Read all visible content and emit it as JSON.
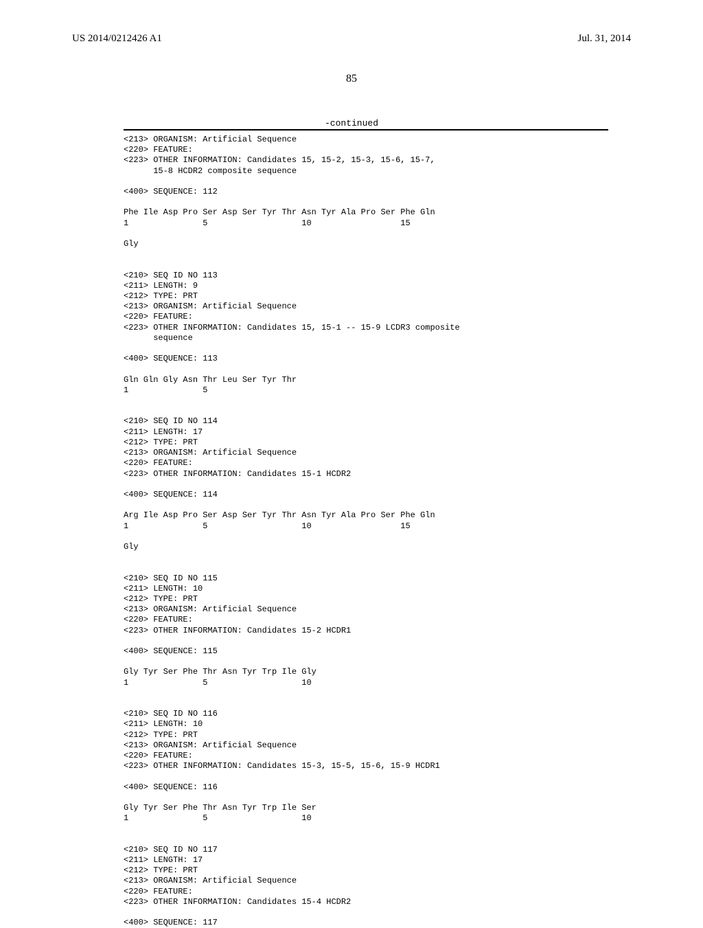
{
  "header": {
    "left": "US 2014/0212426 A1",
    "right": "Jul. 31, 2014",
    "page_number": "85",
    "continued": "-continued"
  },
  "sequence_text": "<213> ORGANISM: Artificial Sequence\n<220> FEATURE:\n<223> OTHER INFORMATION: Candidates 15, 15-2, 15-3, 15-6, 15-7,\n      15-8 HCDR2 composite sequence\n\n<400> SEQUENCE: 112\n\nPhe Ile Asp Pro Ser Asp Ser Tyr Thr Asn Tyr Ala Pro Ser Phe Gln\n1               5                   10                  15\n\nGly\n\n\n<210> SEQ ID NO 113\n<211> LENGTH: 9\n<212> TYPE: PRT\n<213> ORGANISM: Artificial Sequence\n<220> FEATURE:\n<223> OTHER INFORMATION: Candidates 15, 15-1 -- 15-9 LCDR3 composite\n      sequence\n\n<400> SEQUENCE: 113\n\nGln Gln Gly Asn Thr Leu Ser Tyr Thr\n1               5\n\n\n<210> SEQ ID NO 114\n<211> LENGTH: 17\n<212> TYPE: PRT\n<213> ORGANISM: Artificial Sequence\n<220> FEATURE:\n<223> OTHER INFORMATION: Candidates 15-1 HCDR2\n\n<400> SEQUENCE: 114\n\nArg Ile Asp Pro Ser Asp Ser Tyr Thr Asn Tyr Ala Pro Ser Phe Gln\n1               5                   10                  15\n\nGly\n\n\n<210> SEQ ID NO 115\n<211> LENGTH: 10\n<212> TYPE: PRT\n<213> ORGANISM: Artificial Sequence\n<220> FEATURE:\n<223> OTHER INFORMATION: Candidates 15-2 HCDR1\n\n<400> SEQUENCE: 115\n\nGly Tyr Ser Phe Thr Asn Tyr Trp Ile Gly\n1               5                   10\n\n\n<210> SEQ ID NO 116\n<211> LENGTH: 10\n<212> TYPE: PRT\n<213> ORGANISM: Artificial Sequence\n<220> FEATURE:\n<223> OTHER INFORMATION: Candidates 15-3, 15-5, 15-6, 15-9 HCDR1\n\n<400> SEQUENCE: 116\n\nGly Tyr Ser Phe Thr Asn Tyr Trp Ile Ser\n1               5                   10\n\n\n<210> SEQ ID NO 117\n<211> LENGTH: 17\n<212> TYPE: PRT\n<213> ORGANISM: Artificial Sequence\n<220> FEATURE:\n<223> OTHER INFORMATION: Candidates 15-4 HCDR2\n\n<400> SEQUENCE: 117"
}
